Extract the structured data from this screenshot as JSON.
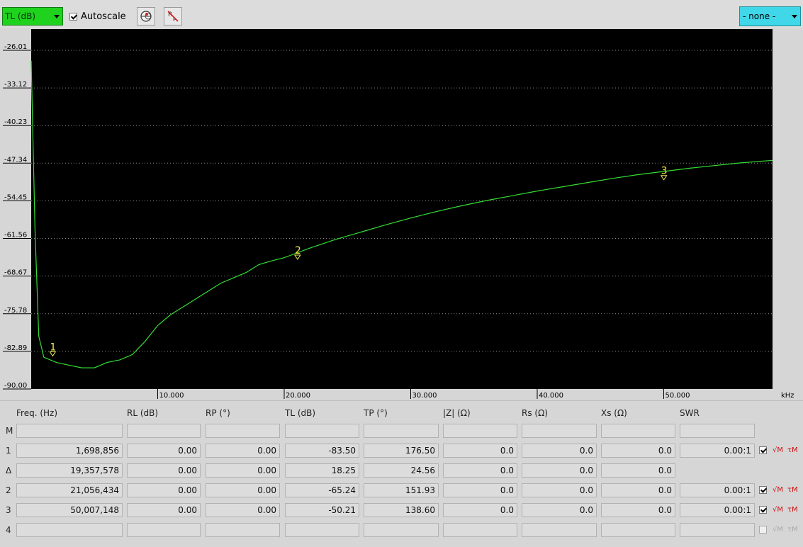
{
  "toolbar": {
    "trace_select": "TL (dB)",
    "autoscale_label": "Autoscale",
    "autoscale_checked": true,
    "marker_select": "- none -"
  },
  "chart_data": {
    "type": "line",
    "background": "#000000",
    "trace_color": "#33dd33",
    "grid": "dotted",
    "ylim": [
      -90,
      -22
    ],
    "xlim": [
      0,
      58.6
    ],
    "x_unit": "kHz",
    "y_ticks": [
      "-26.01",
      "-33.12",
      "-40.23",
      "-47.34",
      "-54.45",
      "-61.56",
      "-68.67",
      "-75.78",
      "-82.89",
      "-90.00"
    ],
    "x_ticks": [
      "10.000",
      "20.000",
      "30.000",
      "40.000",
      "50.000"
    ],
    "series": [
      {
        "x": [
          0,
          0.3,
          0.6,
          1.0,
          2,
          3,
          4,
          5,
          6,
          7,
          8,
          9,
          10,
          11,
          12,
          13,
          14,
          15,
          16,
          17,
          18,
          19,
          20,
          21,
          22,
          23,
          24,
          25,
          26,
          28,
          30,
          32,
          34,
          36,
          38,
          40,
          42,
          44,
          46,
          48,
          50,
          52,
          54,
          56,
          58.6
        ],
        "y": [
          -28,
          -60,
          -80,
          -84,
          -85,
          -85.5,
          -86,
          -86,
          -85,
          -84.5,
          -83.5,
          -81,
          -78,
          -76,
          -74.5,
          -73,
          -71.5,
          -70,
          -69,
          -68,
          -66.5,
          -65.8,
          -65.2,
          -64.3,
          -63.4,
          -62.6,
          -61.8,
          -61.1,
          -60.4,
          -59.0,
          -57.7,
          -56.5,
          -55.4,
          -54.4,
          -53.5,
          -52.6,
          -51.8,
          -51.0,
          -50.2,
          -49.5,
          -48.9,
          -48.3,
          -47.8,
          -47.3,
          -46.8
        ]
      }
    ],
    "markers": [
      {
        "label": "1",
        "x": 1.699,
        "y": -83.5
      },
      {
        "label": "2",
        "x": 21.056,
        "y": -65.24
      },
      {
        "label": "3",
        "x": 50.007,
        "y": -50.21
      }
    ]
  },
  "table": {
    "headers": [
      "Freq. (Hz)",
      "RL (dB)",
      "RP (°)",
      "TL (dB)",
      "TP (°)",
      "|Z| (Ω)",
      "Rs (Ω)",
      "Xs (Ω)",
      "SWR"
    ],
    "rows": [
      {
        "label": "M",
        "cells": [
          "",
          "",
          "",
          "",
          "",
          "",
          "",
          "",
          ""
        ],
        "show_icons": false
      },
      {
        "label": "1",
        "cells": [
          "1,698,856",
          "0.00",
          "0.00",
          "-83.50",
          "176.50",
          "0.0",
          "0.0",
          "0.0",
          "0.00:1"
        ],
        "show_icons": true,
        "enabled": true,
        "checked": true
      },
      {
        "label": "Δ",
        "cells": [
          "19,357,578",
          "0.00",
          "0.00",
          "18.25",
          "24.56",
          "0.0",
          "0.0",
          "0.0"
        ],
        "show_icons": false
      },
      {
        "label": "2",
        "cells": [
          "21,056,434",
          "0.00",
          "0.00",
          "-65.24",
          "151.93",
          "0.0",
          "0.0",
          "0.0",
          "0.00:1"
        ],
        "show_icons": true,
        "enabled": true,
        "checked": true
      },
      {
        "label": "3",
        "cells": [
          "50,007,148",
          "0.00",
          "0.00",
          "-50.21",
          "138.60",
          "0.0",
          "0.0",
          "0.0",
          "0.00:1"
        ],
        "show_icons": true,
        "enabled": true,
        "checked": true
      },
      {
        "label": "4",
        "cells": [
          "",
          "",
          "",
          "",
          "",
          "",
          "",
          "",
          ""
        ],
        "show_icons": true,
        "enabled": false,
        "checked": false
      }
    ],
    "icon_m_label": "√M",
    "icon_t_label": "τM"
  }
}
